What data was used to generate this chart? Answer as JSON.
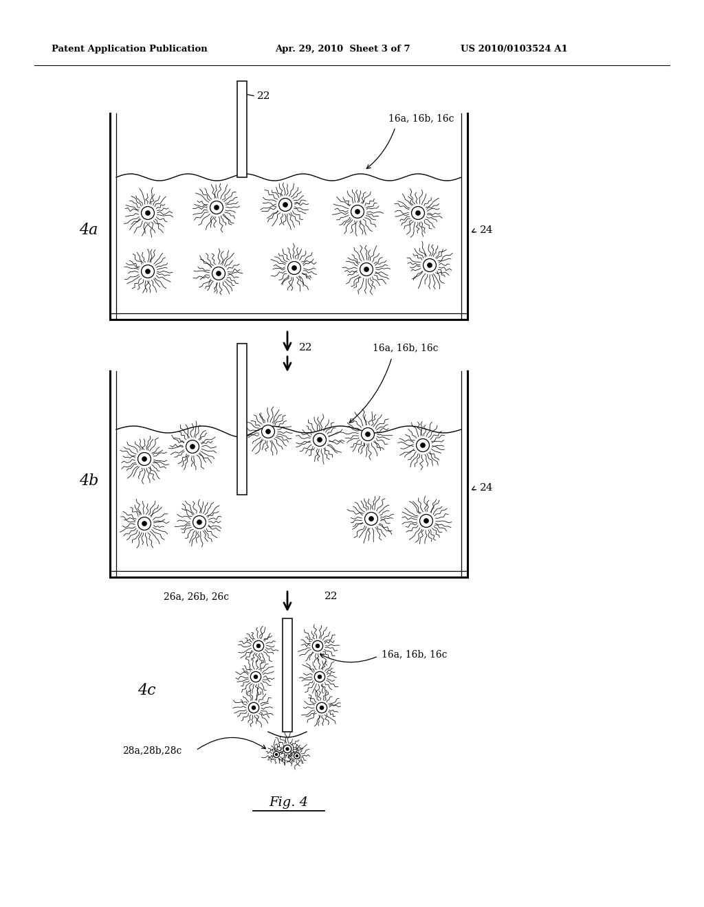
{
  "background_color": "#ffffff",
  "header_left": "Patent Application Publication",
  "header_mid": "Apr. 29, 2010  Sheet 3 of 7",
  "header_right": "US 2010/0103524 A1",
  "fig_label": "Fig. 4",
  "fig4a_label": "4a",
  "fig4b_label": "4b",
  "fig4c_label": "4c",
  "label_22": "22",
  "label_24": "24",
  "label_16abc": "16a, 16b, 16c",
  "label_26abc": "26a, 26b, 26c",
  "label_28abc": "28a,28b,28c"
}
